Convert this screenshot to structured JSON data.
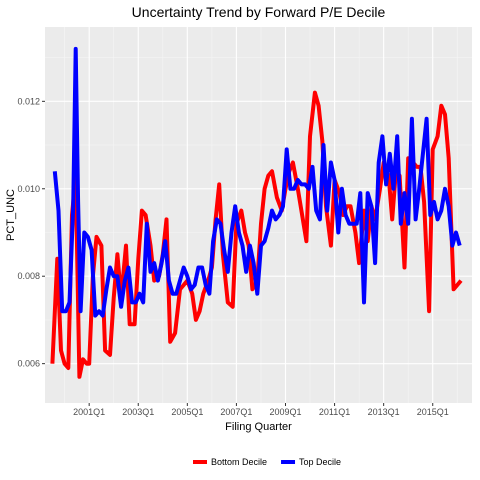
{
  "chart_data": {
    "type": "line",
    "title": "Uncertainty Trend by Forward P/E Decile",
    "xlabel": "Filing Quarter",
    "ylabel": "PCT_UNC",
    "x_range": [
      1999.2,
      2016.6
    ],
    "xlim": [
      1999.2,
      2016.6
    ],
    "ylim": [
      0.0051,
      0.0137
    ],
    "x_ticks": [
      {
        "value": 2001.0,
        "label": "2001Q1"
      },
      {
        "value": 2003.0,
        "label": "2003Q1"
      },
      {
        "value": 2005.0,
        "label": "2005Q1"
      },
      {
        "value": 2007.0,
        "label": "2007Q1"
      },
      {
        "value": 2009.0,
        "label": "2009Q1"
      },
      {
        "value": 2011.0,
        "label": "2011Q1"
      },
      {
        "value": 2013.0,
        "label": "2013Q1"
      },
      {
        "value": 2015.0,
        "label": "2015Q1"
      }
    ],
    "y_ticks": [
      {
        "value": 0.006,
        "label": "0.006"
      },
      {
        "value": 0.008,
        "label": "0.008"
      },
      {
        "value": 0.01,
        "label": "0.010"
      },
      {
        "value": 0.012,
        "label": "0.012"
      }
    ],
    "grid": true,
    "legend_position": "bottom",
    "series": [
      {
        "name": "Bottom Decile",
        "color": "#ff0000",
        "points": [
          [
            1999.5,
            0.006
          ],
          [
            1999.7,
            0.0084
          ],
          [
            1999.85,
            0.0063
          ],
          [
            2000.0,
            0.006
          ],
          [
            2000.15,
            0.0059
          ],
          [
            2000.3,
            0.0094
          ],
          [
            2000.45,
            0.0103
          ],
          [
            2000.6,
            0.0057
          ],
          [
            2000.75,
            0.0061
          ],
          [
            2000.9,
            0.006
          ],
          [
            2001.0,
            0.006
          ],
          [
            2001.15,
            0.008
          ],
          [
            2001.3,
            0.0089
          ],
          [
            2001.5,
            0.0087
          ],
          [
            2001.65,
            0.0063
          ],
          [
            2001.85,
            0.0062
          ],
          [
            2002.0,
            0.0075
          ],
          [
            2002.15,
            0.0085
          ],
          [
            2002.3,
            0.0075
          ],
          [
            2002.5,
            0.0087
          ],
          [
            2002.65,
            0.0069
          ],
          [
            2002.85,
            0.0069
          ],
          [
            2003.0,
            0.0084
          ],
          [
            2003.15,
            0.0095
          ],
          [
            2003.3,
            0.0094
          ],
          [
            2003.5,
            0.0087
          ],
          [
            2003.65,
            0.0079
          ],
          [
            2003.85,
            0.008
          ],
          [
            2004.0,
            0.0085
          ],
          [
            2004.15,
            0.0093
          ],
          [
            2004.3,
            0.0065
          ],
          [
            2004.5,
            0.0067
          ],
          [
            2004.7,
            0.0077
          ],
          [
            2004.85,
            0.0078
          ],
          [
            2005.0,
            0.0079
          ],
          [
            2005.2,
            0.0076
          ],
          [
            2005.35,
            0.007
          ],
          [
            2005.5,
            0.0072
          ],
          [
            2005.65,
            0.0076
          ],
          [
            2005.85,
            0.0079
          ],
          [
            2006.0,
            0.0082
          ],
          [
            2006.15,
            0.0093
          ],
          [
            2006.3,
            0.0101
          ],
          [
            2006.45,
            0.0085
          ],
          [
            2006.65,
            0.0074
          ],
          [
            2006.85,
            0.0073
          ],
          [
            2007.0,
            0.0092
          ],
          [
            2007.2,
            0.0095
          ],
          [
            2007.35,
            0.009
          ],
          [
            2007.5,
            0.0087
          ],
          [
            2007.65,
            0.0077
          ],
          [
            2007.85,
            0.0079
          ],
          [
            2008.0,
            0.0092
          ],
          [
            2008.15,
            0.01
          ],
          [
            2008.3,
            0.0103
          ],
          [
            2008.45,
            0.0104
          ],
          [
            2008.65,
            0.0098
          ],
          [
            2008.85,
            0.0095
          ],
          [
            2009.0,
            0.01
          ],
          [
            2009.15,
            0.0104
          ],
          [
            2009.3,
            0.0106
          ],
          [
            2009.5,
            0.01
          ],
          [
            2009.65,
            0.0095
          ],
          [
            2009.85,
            0.0088
          ],
          [
            2010.0,
            0.0112
          ],
          [
            2010.2,
            0.0122
          ],
          [
            2010.35,
            0.0119
          ],
          [
            2010.5,
            0.0111
          ],
          [
            2010.65,
            0.0096
          ],
          [
            2010.85,
            0.0087
          ],
          [
            2011.0,
            0.0102
          ],
          [
            2011.2,
            0.0099
          ],
          [
            2011.35,
            0.0094
          ],
          [
            2011.5,
            0.0096
          ],
          [
            2011.65,
            0.0096
          ],
          [
            2011.85,
            0.009
          ],
          [
            2012.0,
            0.0083
          ],
          [
            2012.2,
            0.0095
          ],
          [
            2012.35,
            0.0088
          ],
          [
            2012.5,
            0.0096
          ],
          [
            2012.65,
            0.0093
          ],
          [
            2012.85,
            0.01
          ],
          [
            2013.0,
            0.0106
          ],
          [
            2013.2,
            0.0103
          ],
          [
            2013.35,
            0.0093
          ],
          [
            2013.5,
            0.0104
          ],
          [
            2013.65,
            0.0103
          ],
          [
            2013.85,
            0.0082
          ],
          [
            2014.0,
            0.0107
          ],
          [
            2014.2,
            0.0106
          ],
          [
            2014.35,
            0.0105
          ],
          [
            2014.5,
            0.0105
          ],
          [
            2014.65,
            0.0097
          ],
          [
            2014.85,
            0.0072
          ],
          [
            2015.0,
            0.0109
          ],
          [
            2015.2,
            0.0112
          ],
          [
            2015.35,
            0.0119
          ],
          [
            2015.5,
            0.0117
          ],
          [
            2015.65,
            0.0107
          ],
          [
            2015.85,
            0.0077
          ],
          [
            2016.0,
            0.0078
          ],
          [
            2016.15,
            0.0079
          ]
        ]
      },
      {
        "name": "Top Decile",
        "color": "#0000ff",
        "points": [
          [
            1999.6,
            0.0104
          ],
          [
            1999.75,
            0.0095
          ],
          [
            1999.9,
            0.0072
          ],
          [
            2000.05,
            0.0072
          ],
          [
            2000.2,
            0.0074
          ],
          [
            2000.35,
            0.0096
          ],
          [
            2000.45,
            0.0132
          ],
          [
            2000.55,
            0.0097
          ],
          [
            2000.65,
            0.0072
          ],
          [
            2000.8,
            0.009
          ],
          [
            2000.95,
            0.0089
          ],
          [
            2001.1,
            0.0086
          ],
          [
            2001.25,
            0.0071
          ],
          [
            2001.4,
            0.0072
          ],
          [
            2001.55,
            0.0071
          ],
          [
            2001.7,
            0.0077
          ],
          [
            2001.85,
            0.0082
          ],
          [
            2002.0,
            0.008
          ],
          [
            2002.15,
            0.008
          ],
          [
            2002.3,
            0.0073
          ],
          [
            2002.45,
            0.0079
          ],
          [
            2002.6,
            0.0082
          ],
          [
            2002.75,
            0.0074
          ],
          [
            2002.9,
            0.0074
          ],
          [
            2003.05,
            0.0076
          ],
          [
            2003.2,
            0.0074
          ],
          [
            2003.35,
            0.0092
          ],
          [
            2003.5,
            0.0081
          ],
          [
            2003.65,
            0.0083
          ],
          [
            2003.8,
            0.0079
          ],
          [
            2003.95,
            0.0083
          ],
          [
            2004.1,
            0.0088
          ],
          [
            2004.25,
            0.0079
          ],
          [
            2004.4,
            0.0076
          ],
          [
            2004.55,
            0.0076
          ],
          [
            2004.7,
            0.0079
          ],
          [
            2004.85,
            0.0082
          ],
          [
            2005.0,
            0.008
          ],
          [
            2005.15,
            0.0077
          ],
          [
            2005.3,
            0.0078
          ],
          [
            2005.45,
            0.0082
          ],
          [
            2005.6,
            0.0082
          ],
          [
            2005.75,
            0.0078
          ],
          [
            2005.9,
            0.0076
          ],
          [
            2006.05,
            0.0088
          ],
          [
            2006.2,
            0.0093
          ],
          [
            2006.35,
            0.0092
          ],
          [
            2006.5,
            0.0086
          ],
          [
            2006.65,
            0.0081
          ],
          [
            2006.8,
            0.009
          ],
          [
            2006.95,
            0.0096
          ],
          [
            2007.1,
            0.009
          ],
          [
            2007.25,
            0.0087
          ],
          [
            2007.4,
            0.0081
          ],
          [
            2007.55,
            0.0087
          ],
          [
            2007.7,
            0.0083
          ],
          [
            2007.85,
            0.0076
          ],
          [
            2008.0,
            0.0087
          ],
          [
            2008.15,
            0.0088
          ],
          [
            2008.3,
            0.0091
          ],
          [
            2008.45,
            0.0095
          ],
          [
            2008.6,
            0.0093
          ],
          [
            2008.75,
            0.0094
          ],
          [
            2008.9,
            0.0096
          ],
          [
            2009.05,
            0.0109
          ],
          [
            2009.2,
            0.01
          ],
          [
            2009.35,
            0.01
          ],
          [
            2009.5,
            0.0102
          ],
          [
            2009.65,
            0.0101
          ],
          [
            2009.8,
            0.0101
          ],
          [
            2009.95,
            0.01
          ],
          [
            2010.1,
            0.0105
          ],
          [
            2010.25,
            0.0095
          ],
          [
            2010.4,
            0.0093
          ],
          [
            2010.55,
            0.011
          ],
          [
            2010.7,
            0.0095
          ],
          [
            2010.85,
            0.0106
          ],
          [
            2011.0,
            0.0102
          ],
          [
            2011.15,
            0.009
          ],
          [
            2011.3,
            0.01
          ],
          [
            2011.45,
            0.0094
          ],
          [
            2011.6,
            0.0092
          ],
          [
            2011.75,
            0.0092
          ],
          [
            2011.9,
            0.0092
          ],
          [
            2012.05,
            0.0099
          ],
          [
            2012.2,
            0.0074
          ],
          [
            2012.35,
            0.0099
          ],
          [
            2012.5,
            0.0096
          ],
          [
            2012.65,
            0.0083
          ],
          [
            2012.8,
            0.0106
          ],
          [
            2012.95,
            0.0112
          ],
          [
            2013.1,
            0.0101
          ],
          [
            2013.25,
            0.0108
          ],
          [
            2013.4,
            0.01
          ],
          [
            2013.55,
            0.0112
          ],
          [
            2013.7,
            0.0092
          ],
          [
            2013.85,
            0.0099
          ],
          [
            2014.0,
            0.0092
          ],
          [
            2014.15,
            0.0116
          ],
          [
            2014.3,
            0.0093
          ],
          [
            2014.45,
            0.01
          ],
          [
            2014.6,
            0.0108
          ],
          [
            2014.75,
            0.0116
          ],
          [
            2014.9,
            0.0094
          ],
          [
            2015.05,
            0.0097
          ],
          [
            2015.2,
            0.0093
          ],
          [
            2015.35,
            0.0095
          ],
          [
            2015.5,
            0.01
          ],
          [
            2015.65,
            0.0096
          ],
          [
            2015.8,
            0.0087
          ],
          [
            2015.95,
            0.009
          ],
          [
            2016.1,
            0.0087
          ]
        ]
      }
    ]
  }
}
